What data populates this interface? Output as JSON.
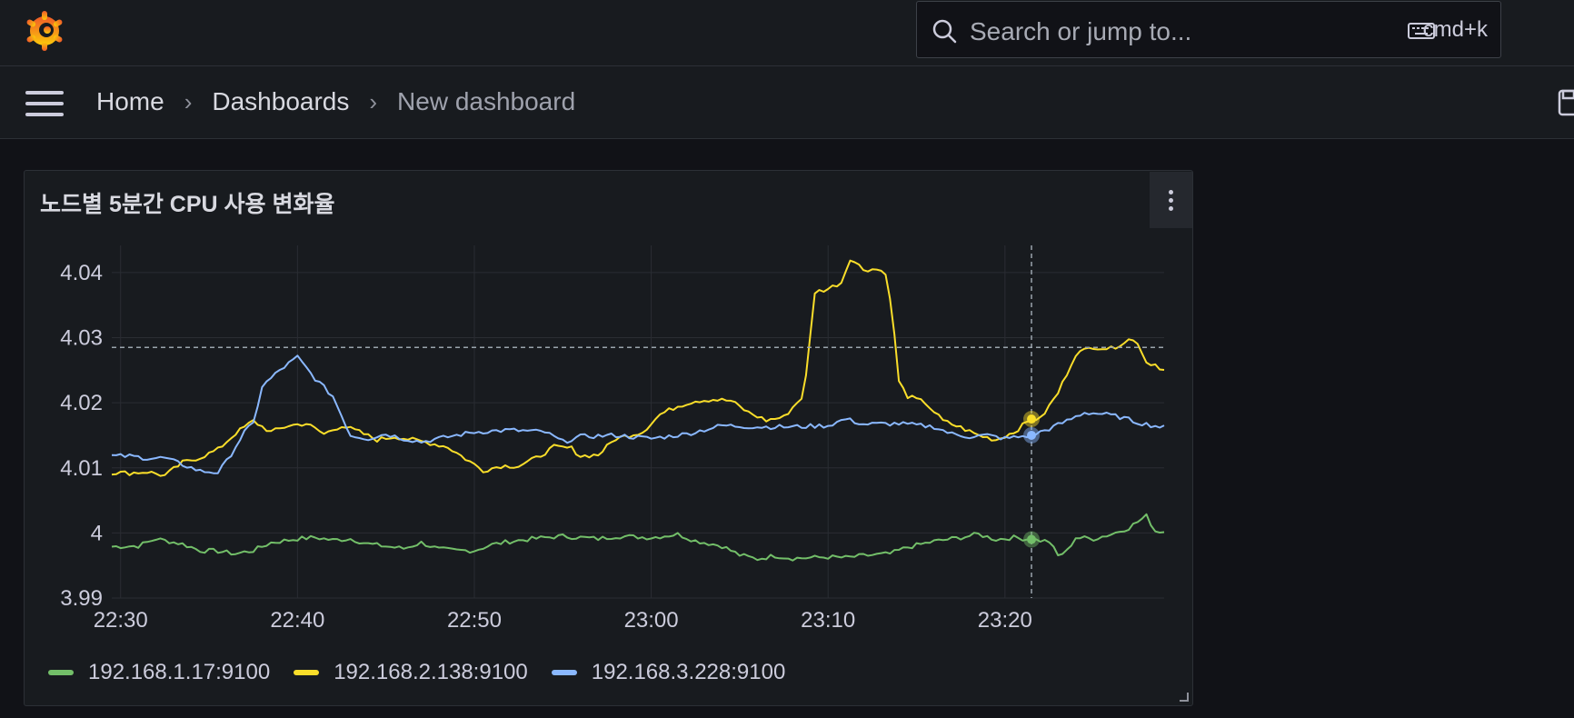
{
  "topbar": {
    "search_placeholder": "Search or jump to...",
    "shortcut": "cmd+k",
    "icons": [
      "grafana-logo",
      "search-icon",
      "keyboard-icon"
    ]
  },
  "breadcrumb": {
    "items": [
      "Home",
      "Dashboards",
      "New dashboard"
    ],
    "separator": "›"
  },
  "panel": {
    "title": "노드별 5분간 CPU 사용 변화율"
  },
  "colors": {
    "bg": "#111217",
    "panel": "#181b1f",
    "green": "#73bf69",
    "yellow": "#fade2a",
    "blue": "#8ab8ff"
  },
  "chart_data": {
    "type": "line",
    "x_ticks": [
      "22:30",
      "22:40",
      "22:50",
      "23:00",
      "23:10",
      "23:20"
    ],
    "y_ticks": [
      "3.99",
      "4",
      "4.01",
      "4.02",
      "4.03",
      "4.04"
    ],
    "ylim": [
      3.99,
      4.0425
    ],
    "xlim": [
      "22:29:30",
      "23:29:00"
    ],
    "grid": true,
    "legend_position": "bottom",
    "crosshair": {
      "x": "23:21:30",
      "y": 4.0285
    },
    "series": [
      {
        "name": "192.168.1.17:9100",
        "color": "#73bf69",
        "points": [
          [
            "22:29:30",
            3.9979
          ],
          [
            "22:31:00",
            3.998
          ],
          [
            "22:32:00",
            3.9991
          ],
          [
            "22:33:30",
            3.9983
          ],
          [
            "22:34:30",
            3.9973
          ],
          [
            "22:35:30",
            3.9972
          ],
          [
            "22:36:30",
            3.9968
          ],
          [
            "22:37:30",
            3.9973
          ],
          [
            "22:38:30",
            3.9985
          ],
          [
            "22:40:00",
            3.9991
          ],
          [
            "22:41:00",
            3.9993
          ],
          [
            "22:42:00",
            3.9989
          ],
          [
            "22:43:00",
            3.9991
          ],
          [
            "22:44:00",
            3.9983
          ],
          [
            "22:46:00",
            3.9976
          ],
          [
            "22:47:00",
            3.9985
          ],
          [
            "22:48:00",
            3.9975
          ],
          [
            "22:49:00",
            3.9973
          ],
          [
            "22:50:00",
            3.9973
          ],
          [
            "22:51:00",
            3.9982
          ],
          [
            "22:52:00",
            3.9987
          ],
          [
            "22:54:00",
            3.9993
          ],
          [
            "22:55:00",
            3.9995
          ],
          [
            "22:56:00",
            3.9993
          ],
          [
            "22:57:00",
            3.9991
          ],
          [
            "22:58:00",
            3.9995
          ],
          [
            "23:00:00",
            3.9993
          ],
          [
            "23:01:30",
            3.9998
          ],
          [
            "23:02:30",
            3.9988
          ],
          [
            "23:04:00",
            3.998
          ],
          [
            "23:05:00",
            3.9966
          ],
          [
            "23:06:00",
            3.996
          ],
          [
            "23:07:00",
            3.9965
          ],
          [
            "23:08:00",
            3.9961
          ],
          [
            "23:09:00",
            3.9962
          ],
          [
            "23:10:00",
            3.9963
          ],
          [
            "23:11:00",
            3.9962
          ],
          [
            "23:12:00",
            3.9965
          ],
          [
            "23:13:30",
            3.9968
          ],
          [
            "23:14:30",
            3.9978
          ],
          [
            "23:16:00",
            3.9987
          ],
          [
            "23:17:30",
            3.9993
          ],
          [
            "23:18:30",
            3.9998
          ],
          [
            "23:19:30",
            3.999
          ],
          [
            "23:20:30",
            3.9993
          ],
          [
            "23:21:30",
            3.999
          ],
          [
            "23:22:30",
            3.9987
          ],
          [
            "23:23:00",
            3.9965
          ],
          [
            "23:23:30",
            3.9972
          ],
          [
            "23:24:00",
            3.9993
          ],
          [
            "23:25:00",
            3.9991
          ],
          [
            "23:26:00",
            3.9998
          ],
          [
            "23:27:00",
            4.0008
          ],
          [
            "23:28:00",
            4.0026
          ],
          [
            "23:28:30",
            4.0003
          ],
          [
            "23:29:00",
            4.0002
          ]
        ]
      },
      {
        "name": "192.168.2.138:9100",
        "color": "#fade2a",
        "points": [
          [
            "22:29:30",
            4.0093
          ],
          [
            "22:30:30",
            4.0092
          ],
          [
            "22:31:30",
            4.0094
          ],
          [
            "22:32:30",
            4.0088
          ],
          [
            "22:33:30",
            4.0108
          ],
          [
            "22:34:30",
            4.0116
          ],
          [
            "22:35:30",
            4.0128
          ],
          [
            "22:36:30",
            4.0153
          ],
          [
            "22:37:30",
            4.0172
          ],
          [
            "22:38:30",
            4.0155
          ],
          [
            "22:39:30",
            4.0165
          ],
          [
            "22:40:30",
            4.0168
          ],
          [
            "22:41:30",
            4.0152
          ],
          [
            "22:42:30",
            4.0165
          ],
          [
            "22:43:30",
            4.0155
          ],
          [
            "22:44:30",
            4.0143
          ],
          [
            "22:45:30",
            4.0148
          ],
          [
            "22:46:30",
            4.0143
          ],
          [
            "22:47:30",
            4.0138
          ],
          [
            "22:48:30",
            4.0132
          ],
          [
            "22:49:30",
            4.0114
          ],
          [
            "22:50:30",
            4.0096
          ],
          [
            "22:51:30",
            4.0103
          ],
          [
            "22:52:30",
            4.0103
          ],
          [
            "22:53:30",
            4.0115
          ],
          [
            "22:54:30",
            4.0132
          ],
          [
            "22:55:30",
            4.013
          ],
          [
            "22:56:00",
            4.0118
          ],
          [
            "22:57:00",
            4.012
          ],
          [
            "22:58:00",
            4.0145
          ],
          [
            "22:59:30",
            4.0155
          ],
          [
            "23:00:30",
            4.0182
          ],
          [
            "23:01:30",
            4.0195
          ],
          [
            "23:02:30",
            4.0203
          ],
          [
            "23:03:30",
            4.0205
          ],
          [
            "23:04:30",
            4.0203
          ],
          [
            "23:05:30",
            4.0185
          ],
          [
            "23:06:30",
            4.0173
          ],
          [
            "23:07:30",
            4.0178
          ],
          [
            "23:08:30",
            4.0208
          ],
          [
            "23:08:45",
            4.024
          ],
          [
            "23:09:15",
            4.037
          ],
          [
            "23:10:00",
            4.0375
          ],
          [
            "23:10:45",
            4.0385
          ],
          [
            "23:11:15",
            4.0422
          ],
          [
            "23:12:00",
            4.0405
          ],
          [
            "23:12:45",
            4.0405
          ],
          [
            "23:13:15",
            4.04
          ],
          [
            "23:13:40",
            4.033
          ],
          [
            "23:14:00",
            4.0232
          ],
          [
            "23:14:30",
            4.021
          ],
          [
            "23:15:30",
            4.02
          ],
          [
            "23:16:30",
            4.0172
          ],
          [
            "23:17:30",
            4.0162
          ],
          [
            "23:18:30",
            4.015
          ],
          [
            "23:19:30",
            4.0143
          ],
          [
            "23:20:30",
            4.0155
          ],
          [
            "23:21:30",
            4.0175
          ],
          [
            "23:22:00",
            4.0175
          ],
          [
            "23:23:00",
            4.0215
          ],
          [
            "23:24:00",
            4.0275
          ],
          [
            "23:25:00",
            4.0286
          ],
          [
            "23:26:00",
            4.0283
          ],
          [
            "23:27:00",
            4.0297
          ],
          [
            "23:27:30",
            4.0293
          ],
          [
            "23:28:00",
            4.0262
          ],
          [
            "23:28:30",
            4.0259
          ],
          [
            "23:29:00",
            4.025
          ]
        ]
      },
      {
        "name": "192.168.3.228:9100",
        "color": "#8ab8ff",
        "points": [
          [
            "22:29:30",
            4.0118
          ],
          [
            "22:30:30",
            4.0118
          ],
          [
            "22:31:30",
            4.0115
          ],
          [
            "22:32:30",
            4.0115
          ],
          [
            "22:33:30",
            4.0105
          ],
          [
            "22:34:30",
            4.0095
          ],
          [
            "22:35:30",
            4.0093
          ],
          [
            "22:36:00",
            4.011
          ],
          [
            "22:37:00",
            4.0155
          ],
          [
            "22:37:30",
            4.0168
          ],
          [
            "22:38:00",
            4.0225
          ],
          [
            "22:39:00",
            4.025
          ],
          [
            "22:39:30",
            4.026
          ],
          [
            "22:40:00",
            4.027
          ],
          [
            "22:41:00",
            4.0237
          ],
          [
            "22:42:00",
            4.021
          ],
          [
            "22:42:30",
            4.018
          ],
          [
            "22:43:00",
            4.015
          ],
          [
            "22:44:00",
            4.0145
          ],
          [
            "22:45:00",
            4.0152
          ],
          [
            "22:46:00",
            4.0145
          ],
          [
            "22:47:00",
            4.014
          ],
          [
            "22:48:00",
            4.0145
          ],
          [
            "22:49:00",
            4.015
          ],
          [
            "22:50:00",
            4.0155
          ],
          [
            "22:52:00",
            4.0158
          ],
          [
            "22:54:00",
            4.0155
          ],
          [
            "22:55:00",
            4.014
          ],
          [
            "22:56:00",
            4.0148
          ],
          [
            "22:58:00",
            4.015
          ],
          [
            "23:00:00",
            4.0145
          ],
          [
            "23:02:00",
            4.0152
          ],
          [
            "23:04:00",
            4.0165
          ],
          [
            "23:06:00",
            4.0163
          ],
          [
            "23:08:00",
            4.0163
          ],
          [
            "23:10:00",
            4.0165
          ],
          [
            "23:11:00",
            4.0175
          ],
          [
            "23:12:00",
            4.0167
          ],
          [
            "23:14:00",
            4.0168
          ],
          [
            "23:16:00",
            4.0163
          ],
          [
            "23:17:00",
            4.0152
          ],
          [
            "23:18:00",
            4.0148
          ],
          [
            "23:19:00",
            4.015
          ],
          [
            "23:20:00",
            4.0145
          ],
          [
            "23:21:30",
            4.015
          ],
          [
            "23:22:30",
            4.016
          ],
          [
            "23:23:30",
            4.0172
          ],
          [
            "23:24:30",
            4.0185
          ],
          [
            "23:25:30",
            4.0183
          ],
          [
            "23:26:30",
            4.0178
          ],
          [
            "23:27:30",
            4.017
          ],
          [
            "23:28:00",
            4.0167
          ],
          [
            "23:29:00",
            4.0162
          ]
        ]
      }
    ]
  }
}
